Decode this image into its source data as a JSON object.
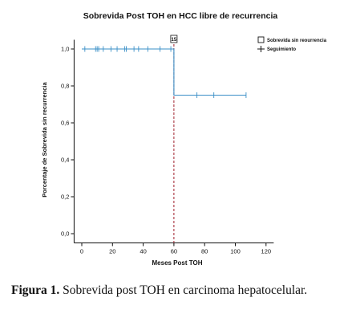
{
  "chart_data": {
    "type": "line",
    "title": "Sobrevida Post TOH en HCC libre de recurrencia",
    "xlabel": "Meses Post TOH",
    "ylabel": "Porcentaje de Sobrevida sin recurrencia",
    "xlim": [
      -5,
      125
    ],
    "ylim": [
      -0.05,
      1.05
    ],
    "x_ticks": [
      0,
      20,
      40,
      60,
      80,
      100,
      120
    ],
    "y_ticks": [
      0.0,
      0.2,
      0.4,
      0.6,
      0.8,
      1.0
    ],
    "y_tick_labels": [
      "0,0",
      "0,2",
      "0,4",
      "0,6",
      "0,8",
      "1,0"
    ],
    "legend_position": "top-right",
    "series": [
      {
        "name": "Sobrevida sin reourrencia",
        "color": "#3a8fc7",
        "steps": [
          [
            0,
            1.0
          ],
          [
            60,
            1.0
          ],
          [
            60,
            0.75
          ],
          [
            107,
            0.75
          ]
        ]
      },
      {
        "name": "Seguimiento",
        "color": "#3a8fc7",
        "censored": [
          {
            "x": 2,
            "y": 1.0
          },
          {
            "x": 9,
            "y": 1.0
          },
          {
            "x": 10,
            "y": 1.0
          },
          {
            "x": 11,
            "y": 1.0
          },
          {
            "x": 14,
            "y": 1.0
          },
          {
            "x": 19,
            "y": 1.0
          },
          {
            "x": 23,
            "y": 1.0
          },
          {
            "x": 28,
            "y": 1.0
          },
          {
            "x": 29,
            "y": 1.0
          },
          {
            "x": 34,
            "y": 1.0
          },
          {
            "x": 37,
            "y": 1.0
          },
          {
            "x": 43,
            "y": 1.0
          },
          {
            "x": 51,
            "y": 1.0
          },
          {
            "x": 58,
            "y": 1.0
          },
          {
            "x": 75,
            "y": 0.75
          },
          {
            "x": 86,
            "y": 0.75
          },
          {
            "x": 107,
            "y": 0.75
          }
        ]
      }
    ],
    "reference_line": {
      "x": 60,
      "color": "#a0202c",
      "label": "15"
    }
  },
  "caption": {
    "label": "Figura 1.",
    "text": " Sobrevida post TOH en carcinoma hepatocelular."
  }
}
